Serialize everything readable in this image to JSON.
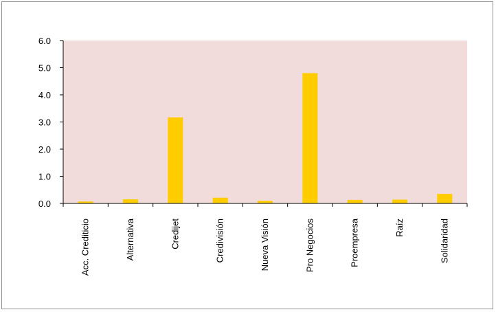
{
  "chart_data": {
    "type": "bar",
    "title": "",
    "xlabel": "",
    "ylabel": "",
    "categories": [
      "Acc. Crediticio",
      "Alternativa",
      "Credijet",
      "Credivisión",
      "Nueva Visión",
      "Pro Negocios",
      "Proempresa",
      "Raíz",
      "Solidaridad"
    ],
    "values": [
      0.07,
      0.15,
      3.17,
      0.21,
      0.1,
      4.8,
      0.13,
      0.14,
      0.35
    ],
    "ylim": [
      0,
      6
    ],
    "yticks": [
      "0.0",
      "1.0",
      "2.0",
      "3.0",
      "4.0",
      "5.0",
      "6.0"
    ],
    "grid": false,
    "legend": "none",
    "colors": {
      "bar": "#ffcc00",
      "plot_background": "#f2dcdb",
      "axis": "#000000"
    }
  }
}
